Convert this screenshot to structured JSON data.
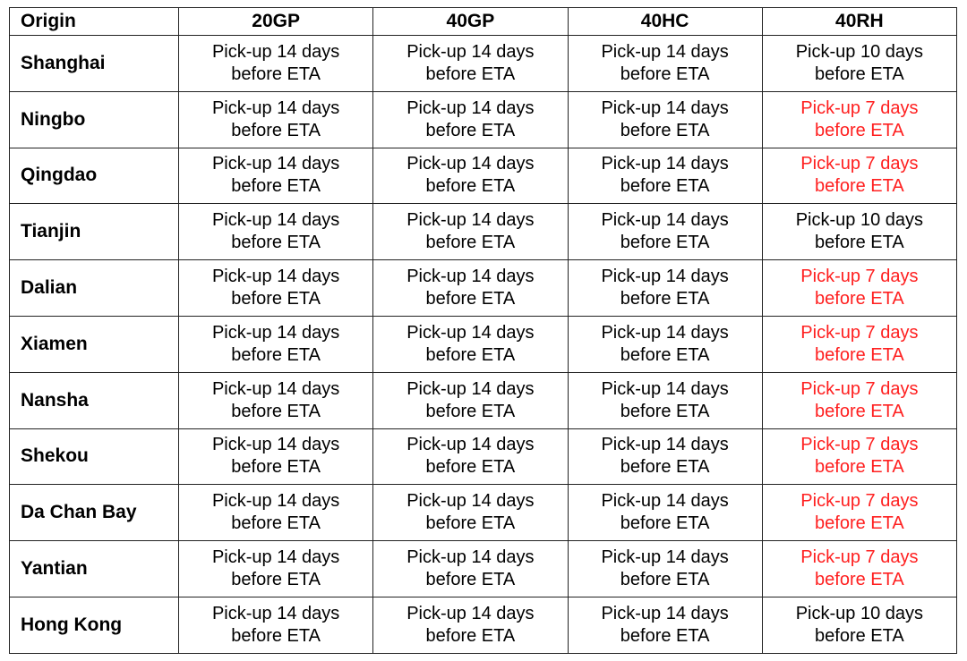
{
  "colors": {
    "text": "#000000",
    "highlight": "#ff1f1f",
    "border": "#222222"
  },
  "headers": [
    "Origin",
    "20GP",
    "40GP",
    "40HC",
    "40RH"
  ],
  "rows": [
    {
      "origin": "Shanghai",
      "cells": [
        {
          "line1": "Pick-up 14 days",
          "line2": "before ETA",
          "highlight": false
        },
        {
          "line1": "Pick-up 14 days",
          "line2": "before ETA",
          "highlight": false
        },
        {
          "line1": "Pick-up 14 days",
          "line2": "before ETA",
          "highlight": false
        },
        {
          "line1": "Pick-up 10 days",
          "line2": "before ETA",
          "highlight": false
        }
      ]
    },
    {
      "origin": "Ningbo",
      "cells": [
        {
          "line1": "Pick-up 14 days",
          "line2": "before ETA",
          "highlight": false
        },
        {
          "line1": "Pick-up 14 days",
          "line2": "before ETA",
          "highlight": false
        },
        {
          "line1": "Pick-up 14 days",
          "line2": "before ETA",
          "highlight": false
        },
        {
          "line1": "Pick-up 7 days",
          "line2": "before ETA",
          "highlight": true
        }
      ]
    },
    {
      "origin": "Qingdao",
      "cells": [
        {
          "line1": "Pick-up 14 days",
          "line2": "before ETA",
          "highlight": false
        },
        {
          "line1": "Pick-up 14 days",
          "line2": "before ETA",
          "highlight": false
        },
        {
          "line1": "Pick-up 14 days",
          "line2": "before ETA",
          "highlight": false
        },
        {
          "line1": "Pick-up 7 days",
          "line2": "before ETA",
          "highlight": true
        }
      ]
    },
    {
      "origin": "Tianjin",
      "cells": [
        {
          "line1": "Pick-up 14 days",
          "line2": "before ETA",
          "highlight": false
        },
        {
          "line1": "Pick-up 14 days",
          "line2": "before ETA",
          "highlight": false
        },
        {
          "line1": "Pick-up 14 days",
          "line2": "before ETA",
          "highlight": false
        },
        {
          "line1": "Pick-up 10 days",
          "line2": "before ETA",
          "highlight": false
        }
      ]
    },
    {
      "origin": "Dalian",
      "cells": [
        {
          "line1": "Pick-up 14 days",
          "line2": "before ETA",
          "highlight": false
        },
        {
          "line1": "Pick-up 14 days",
          "line2": "before ETA",
          "highlight": false
        },
        {
          "line1": "Pick-up 14 days",
          "line2": "before ETA",
          "highlight": false
        },
        {
          "line1": "Pick-up 7 days",
          "line2": "before ETA",
          "highlight": true
        }
      ]
    },
    {
      "origin": "Xiamen",
      "cells": [
        {
          "line1": "Pick-up 14 days",
          "line2": "before ETA",
          "highlight": false
        },
        {
          "line1": "Pick-up 14 days",
          "line2": "before ETA",
          "highlight": false
        },
        {
          "line1": "Pick-up 14 days",
          "line2": "before ETA",
          "highlight": false
        },
        {
          "line1": "Pick-up 7 days",
          "line2": "before ETA",
          "highlight": true
        }
      ]
    },
    {
      "origin": "Nansha",
      "cells": [
        {
          "line1": "Pick-up 14 days",
          "line2": "before ETA",
          "highlight": false
        },
        {
          "line1": "Pick-up 14 days",
          "line2": "before ETA",
          "highlight": false
        },
        {
          "line1": "Pick-up 14 days",
          "line2": "before ETA",
          "highlight": false
        },
        {
          "line1": "Pick-up 7 days",
          "line2": "before ETA",
          "highlight": true
        }
      ]
    },
    {
      "origin": "Shekou",
      "cells": [
        {
          "line1": "Pick-up 14 days",
          "line2": "before ETA",
          "highlight": false
        },
        {
          "line1": "Pick-up 14 days",
          "line2": "before ETA",
          "highlight": false
        },
        {
          "line1": "Pick-up 14 days",
          "line2": "before ETA",
          "highlight": false
        },
        {
          "line1": "Pick-up 7 days",
          "line2": "before ETA",
          "highlight": true
        }
      ]
    },
    {
      "origin": "Da Chan Bay",
      "cells": [
        {
          "line1": "Pick-up 14 days",
          "line2": "before ETA",
          "highlight": false
        },
        {
          "line1": "Pick-up 14 days",
          "line2": "before ETA",
          "highlight": false
        },
        {
          "line1": "Pick-up 14 days",
          "line2": "before ETA",
          "highlight": false
        },
        {
          "line1": "Pick-up 7 days",
          "line2": "before ETA",
          "highlight": true
        }
      ]
    },
    {
      "origin": "Yantian",
      "cells": [
        {
          "line1": "Pick-up 14 days",
          "line2": "before ETA",
          "highlight": false
        },
        {
          "line1": "Pick-up 14 days",
          "line2": "before ETA",
          "highlight": false
        },
        {
          "line1": "Pick-up 14 days",
          "line2": "before ETA",
          "highlight": false
        },
        {
          "line1": "Pick-up 7 days",
          "line2": "before ETA",
          "highlight": true
        }
      ]
    },
    {
      "origin": "Hong Kong",
      "cells": [
        {
          "line1": "Pick-up 14 days",
          "line2": "before ETA",
          "highlight": false
        },
        {
          "line1": "Pick-up 14 days",
          "line2": "before ETA",
          "highlight": false
        },
        {
          "line1": "Pick-up 14 days",
          "line2": "before ETA",
          "highlight": false
        },
        {
          "line1": "Pick-up 10 days",
          "line2": "before ETA",
          "highlight": false
        }
      ]
    }
  ]
}
